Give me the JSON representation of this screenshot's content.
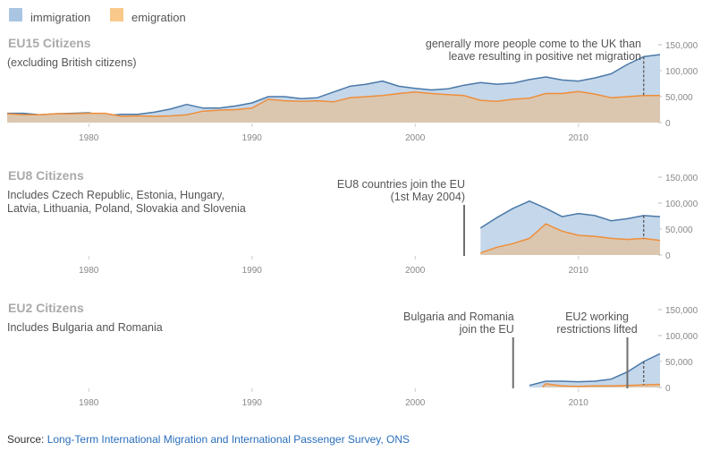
{
  "legend": [
    {
      "label": "immigration",
      "color": "#a9c5e2"
    },
    {
      "label": "emigration",
      "color": "#f9c98b"
    }
  ],
  "colors": {
    "immigration_fill": "#c5d7ea",
    "immigration_line": "#4a79a9",
    "emigration_fill": "#dcc6ad",
    "emigration_line": "#ef8e3a",
    "marker": "#6f6f6f"
  },
  "source": {
    "prefix": "Source: ",
    "link_text": "Long-Term International Migration and International Passenger Survey, ONS"
  },
  "chart_data": [
    {
      "type": "area",
      "title": "EU15 Citizens",
      "subtitle": [
        "(excluding British citizens)"
      ],
      "x_ticks": [
        1980,
        1990,
        2000,
        2010
      ],
      "y_ticks": [
        0,
        50000,
        100000,
        150000
      ],
      "y_tick_labels": [
        "0",
        "50,000",
        "100,000",
        "150,000"
      ],
      "xlim": [
        1975,
        2015
      ],
      "ylim": [
        0,
        150000
      ],
      "series": [
        {
          "name": "immigration",
          "x": [
            1975,
            1976,
            1977,
            1978,
            1979,
            1980,
            1981,
            1982,
            1983,
            1984,
            1985,
            1986,
            1987,
            1988,
            1989,
            1990,
            1991,
            1992,
            1993,
            1994,
            1995,
            1996,
            1997,
            1998,
            1999,
            2000,
            2001,
            2002,
            2003,
            2004,
            2005,
            2006,
            2007,
            2008,
            2009,
            2010,
            2011,
            2012,
            2013,
            2014,
            2015
          ],
          "values": [
            18000,
            18000,
            15000,
            17000,
            18000,
            19000,
            13000,
            16000,
            16000,
            20000,
            26000,
            35000,
            28000,
            28000,
            32000,
            38000,
            50000,
            50000,
            46000,
            48000,
            59000,
            70000,
            74000,
            80000,
            70000,
            66000,
            63000,
            65000,
            72000,
            77000,
            74000,
            76000,
            83000,
            88000,
            82000,
            80000,
            86000,
            94000,
            112000,
            127000,
            131000
          ]
        },
        {
          "name": "emigration",
          "x": [
            1975,
            1976,
            1977,
            1978,
            1979,
            1980,
            1981,
            1982,
            1983,
            1984,
            1985,
            1986,
            1987,
            1988,
            1989,
            1990,
            1991,
            1992,
            1993,
            1994,
            1995,
            1996,
            1997,
            1998,
            1999,
            2000,
            2001,
            2002,
            2003,
            2004,
            2005,
            2006,
            2007,
            2008,
            2009,
            2010,
            2011,
            2012,
            2013,
            2014,
            2015
          ],
          "values": [
            17000,
            15000,
            15000,
            17000,
            17000,
            18000,
            18000,
            12000,
            13000,
            12000,
            13000,
            15000,
            22000,
            24000,
            25000,
            28000,
            45000,
            42000,
            41000,
            42000,
            40000,
            48000,
            50000,
            52000,
            56000,
            59000,
            56000,
            54000,
            52000,
            43000,
            41000,
            45000,
            47000,
            56000,
            56000,
            60000,
            55000,
            48000,
            50000,
            52000,
            52000
          ]
        }
      ],
      "annotations": [
        {
          "lines": [
            "generally more people come to the UK than",
            "leave resulting in positive net migration"
          ],
          "year": 2014
        }
      ]
    },
    {
      "type": "area",
      "title": "EU8 Citizens",
      "subtitle": [
        "Includes Czech Republic, Estonia, Hungary,",
        "Latvia, Lithuania, Poland, Slovakia and Slovenia"
      ],
      "x_ticks": [
        1980,
        1990,
        2000,
        2010
      ],
      "y_ticks": [
        0,
        50000,
        100000,
        150000
      ],
      "y_tick_labels": [
        "0",
        "50,000",
        "100,000",
        "150,000"
      ],
      "xlim": [
        1975,
        2015
      ],
      "ylim": [
        0,
        150000
      ],
      "series": [
        {
          "name": "immigration",
          "x": [
            2004,
            2005,
            2006,
            2007,
            2008,
            2009,
            2010,
            2011,
            2012,
            2013,
            2014,
            2015
          ],
          "values": [
            52000,
            72000,
            90000,
            104000,
            90000,
            74000,
            80000,
            76000,
            66000,
            70000,
            76000,
            74000
          ]
        },
        {
          "name": "emigration",
          "x": [
            2004,
            2005,
            2006,
            2007,
            2008,
            2009,
            2010,
            2011,
            2012,
            2013,
            2014,
            2015
          ],
          "values": [
            4000,
            15000,
            22000,
            32000,
            60000,
            46000,
            38000,
            36000,
            32000,
            30000,
            32000,
            28000
          ]
        }
      ],
      "annotations": [
        {
          "lines": [
            "EU8 countries join the EU",
            "(1st May 2004)"
          ],
          "year": 2003.0
        }
      ],
      "net_migration_marker": 2014
    },
    {
      "type": "area",
      "title": "EU2 Citizens",
      "subtitle": [
        "Includes Bulgaria and Romania"
      ],
      "x_ticks": [
        1980,
        1990,
        2000,
        2010
      ],
      "y_ticks": [
        0,
        50000,
        100000,
        150000
      ],
      "y_tick_labels": [
        "0",
        "50,000",
        "100,000",
        "150,000"
      ],
      "xlim": [
        1975,
        2015
      ],
      "ylim": [
        0,
        150000
      ],
      "series": [
        {
          "name": "immigration",
          "x": [
            2007,
            2008,
            2009,
            2010,
            2011,
            2012,
            2013,
            2014,
            2015
          ],
          "values": [
            4000,
            12000,
            12000,
            11000,
            12000,
            16000,
            30000,
            50000,
            65000
          ]
        },
        {
          "name": "emigration",
          "x": [
            2007.8,
            2008,
            2009,
            2010,
            2011,
            2012,
            2013,
            2014,
            2015
          ],
          "values": [
            1000,
            7000,
            3000,
            2000,
            3000,
            3000,
            4000,
            5000,
            6000
          ]
        }
      ],
      "annotations": [
        {
          "lines": [
            "Bulgaria and Romania",
            "join the EU"
          ],
          "year": 2006.0
        },
        {
          "lines": [
            "EU2 working",
            "restrictions lifted"
          ],
          "year": 2013.0
        }
      ],
      "net_migration_marker": 2014
    }
  ]
}
